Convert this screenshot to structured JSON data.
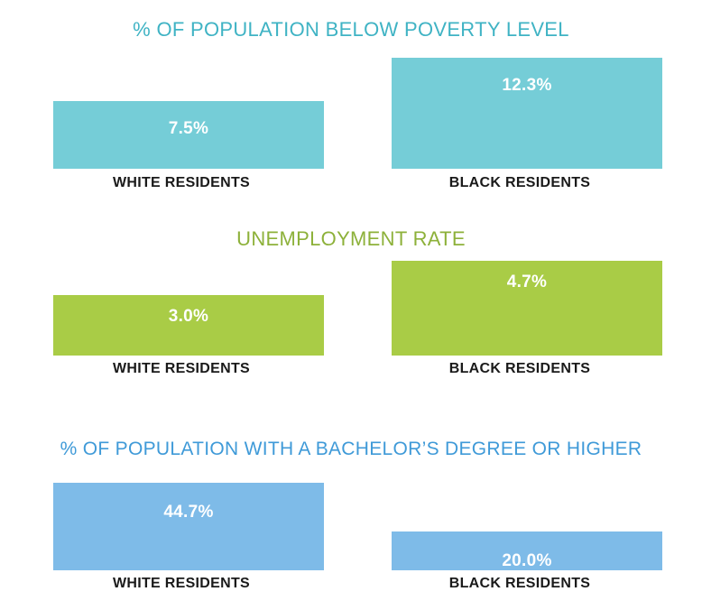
{
  "chart_data": [
    {
      "type": "bar",
      "title": "% OF POPULATION BELOW POVERTY LEVEL",
      "categories": [
        "WHITE RESIDENTS",
        "BLACK RESIDENTS"
      ],
      "values": [
        7.5,
        12.3
      ],
      "value_labels": [
        "7.5%",
        "12.3%"
      ],
      "color": "#75cdd7",
      "title_color": "#3fb3c4"
    },
    {
      "type": "bar",
      "title": "UNEMPLOYMENT RATE",
      "categories": [
        "WHITE RESIDENTS",
        "BLACK RESIDENTS"
      ],
      "values": [
        3.0,
        4.7
      ],
      "value_labels": [
        "3.0%",
        "4.7%"
      ],
      "color": "#a9cc46",
      "title_color": "#8db13a"
    },
    {
      "type": "bar",
      "title": "% OF POPULATION  WITH A BACHELOR’S DEGREE OR HIGHER",
      "categories": [
        "WHITE RESIDENTS",
        "BLACK RESIDENTS"
      ],
      "values": [
        44.7,
        20.0
      ],
      "value_labels": [
        "44.7%",
        "20.0%"
      ],
      "color": "#7ebbe8",
      "title_color": "#3f9ad8"
    }
  ]
}
